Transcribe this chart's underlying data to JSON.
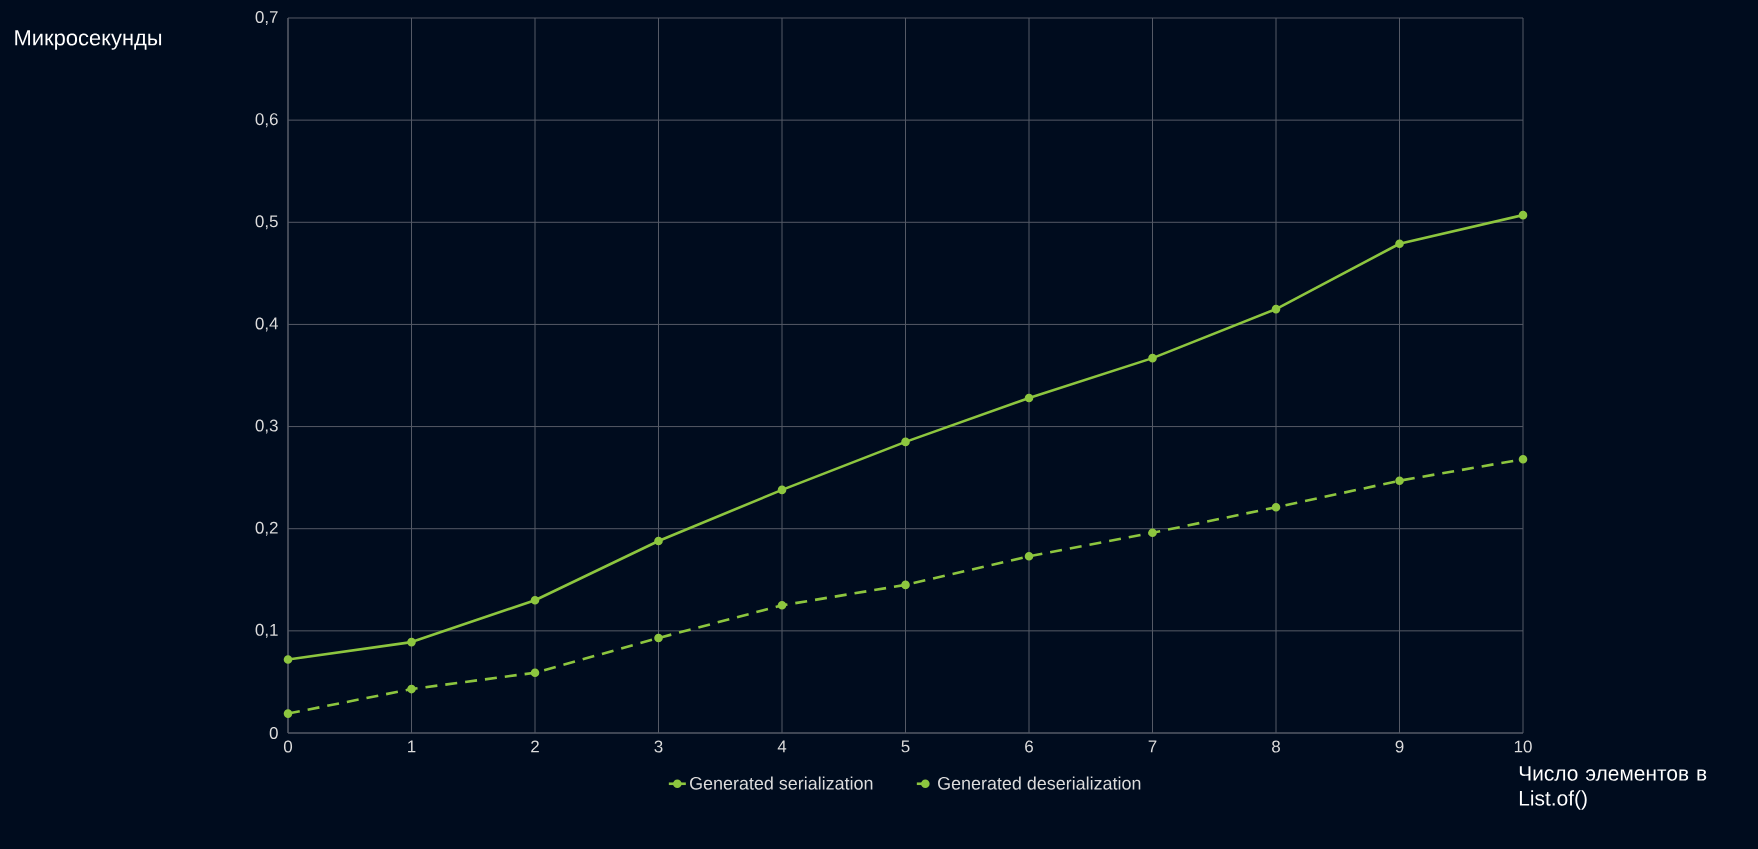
{
  "chart_data": {
    "type": "line",
    "ylabel": "Микросекунды",
    "xlabel": "Число элементов в List.of()",
    "x": [
      0,
      1,
      2,
      3,
      4,
      5,
      6,
      7,
      8,
      9,
      10
    ],
    "series": [
      {
        "name": "Generated serialization",
        "color": "#8dc63f",
        "line_style": "solid",
        "values": [
          0.072,
          0.089,
          0.13,
          0.188,
          0.238,
          0.285,
          0.328,
          0.367,
          0.415,
          0.479,
          0.507
        ]
      },
      {
        "name": "Generated deserialization",
        "color": "#8dc63f",
        "line_style": "dashed",
        "values": [
          0.019,
          0.043,
          0.059,
          0.093,
          0.125,
          0.145,
          0.173,
          0.196,
          0.221,
          0.247,
          0.268
        ]
      }
    ],
    "xlim": [
      0,
      10
    ],
    "ylim": [
      0,
      0.7
    ],
    "xticks": [
      0,
      1,
      2,
      3,
      4,
      5,
      6,
      7,
      8,
      9,
      10
    ],
    "yticks": [
      0,
      {
        "value": 0.1,
        "label": "0,1"
      },
      {
        "value": 0.2,
        "label": "0,2"
      },
      {
        "value": 0.3,
        "label": "0,3"
      },
      {
        "value": 0.4,
        "label": "0,4"
      },
      {
        "value": 0.5,
        "label": "0,5"
      },
      {
        "value": 0.6,
        "label": "0,6"
      },
      {
        "value": 0.7,
        "label": "0,7"
      }
    ],
    "grid": true,
    "legend": "bottom",
    "marker": "circle"
  }
}
